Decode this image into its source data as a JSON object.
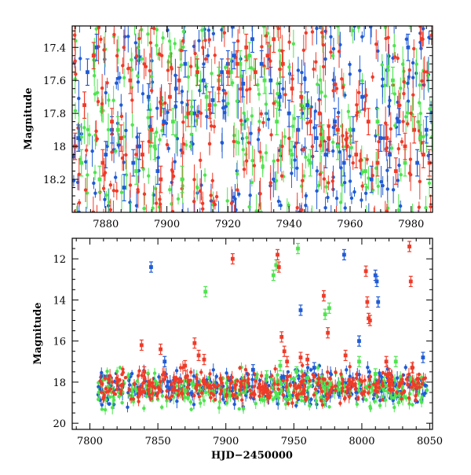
{
  "colors": {
    "blue": "#1f5bd6",
    "green": "#4ee44e",
    "red": "#f03a28",
    "black": "#000000"
  },
  "chart_data": [
    {
      "type": "scatter",
      "panel": "top",
      "title": "",
      "xlabel": "",
      "ylabel": "Magnitude",
      "xlim": [
        7869,
        7987
      ],
      "ylim": [
        18.4,
        17.27
      ],
      "y_inverted": true,
      "xticks": [
        7880,
        7900,
        7920,
        7940,
        7960,
        7980
      ],
      "yticks": [
        17.4,
        17.6,
        17.8,
        18,
        18.2
      ],
      "ytick_labels": [
        "17.4",
        "17.6",
        "17.8",
        "18",
        "18.2"
      ],
      "grid": false,
      "legend": "none",
      "error_bars": true,
      "series_colors": [
        "blue",
        "green",
        "red"
      ],
      "series": [
        {
          "color": "blue",
          "x": [
            7871,
            7874,
            7877,
            7880,
            7882,
            7886,
            7889,
            7891,
            7894,
            7897,
            7899,
            7903,
            7906,
            7909,
            7912,
            7915,
            7918,
            7920,
            7922,
            7925,
            7928,
            7931,
            7934,
            7937,
            7940,
            7943,
            7946,
            7949,
            7952,
            7955,
            7958,
            7961,
            7964,
            7967,
            7970,
            7973,
            7976,
            7979,
            7982,
            7985
          ],
          "y": [
            17.95,
            17.55,
            17.4,
            18.05,
            17.9,
            18.25,
            18.1,
            18.0,
            17.7,
            18.15,
            17.85,
            17.65,
            17.5,
            17.8,
            17.6,
            17.72,
            17.55,
            17.5,
            17.45,
            17.62,
            17.35,
            17.5,
            17.6,
            17.7,
            17.8,
            17.9,
            17.75,
            17.95,
            18.05,
            17.85,
            18.1,
            17.9,
            17.7,
            18.2,
            17.95,
            18.05,
            17.85,
            17.4,
            18.1,
            17.9
          ]
        },
        {
          "color": "green",
          "x": [
            7872,
            7878,
            7884,
            7890,
            7896,
            7902,
            7905,
            7908,
            7913,
            7917,
            7921,
            7924,
            7927,
            7932,
            7936,
            7941,
            7944,
            7947,
            7951,
            7956,
            7960,
            7965,
            7969,
            7974,
            7978,
            7983
          ],
          "y": [
            18.1,
            18.2,
            17.9,
            18.15,
            18.0,
            17.85,
            18.2,
            17.8,
            17.7,
            17.6,
            17.55,
            17.5,
            17.45,
            17.6,
            17.85,
            18.05,
            17.75,
            18.1,
            17.95,
            18.0,
            17.9,
            18.15,
            17.85,
            17.6,
            18.1,
            17.95
          ]
        },
        {
          "color": "red",
          "x": [
            7870,
            7873,
            7876,
            7879,
            7882,
            7885,
            7888,
            7892,
            7895,
            7898,
            7901,
            7904,
            7907,
            7910,
            7914,
            7917,
            7920,
            7923,
            7926,
            7929,
            7933,
            7935,
            7938,
            7941,
            7944,
            7947,
            7950,
            7953,
            7956,
            7959,
            7962,
            7966,
            7969,
            7972,
            7975,
            7978,
            7981,
            7984,
            7986
          ],
          "y": [
            18.0,
            17.75,
            17.45,
            18.1,
            17.85,
            17.95,
            17.6,
            18.05,
            17.9,
            18.2,
            17.7,
            17.6,
            17.8,
            17.55,
            17.75,
            17.65,
            17.55,
            17.5,
            17.4,
            17.55,
            17.45,
            17.35,
            17.5,
            17.65,
            17.7,
            17.85,
            17.8,
            17.95,
            17.9,
            18.0,
            18.05,
            17.85,
            18.1,
            17.95,
            18.15,
            18.0,
            17.9,
            18.05,
            18.1
          ]
        }
      ]
    },
    {
      "type": "scatter",
      "panel": "bottom",
      "title": "",
      "xlabel": "HJD−2450000",
      "ylabel": "Magnitude",
      "xlim": [
        7787,
        8052
      ],
      "ylim": [
        20.3,
        11.0
      ],
      "y_inverted": true,
      "xticks": [
        7800,
        7850,
        7900,
        7950,
        8000,
        8050
      ],
      "yticks": [
        12,
        14,
        16,
        18,
        20
      ],
      "ytick_labels": [
        "12",
        "14",
        "16",
        "18",
        "20"
      ],
      "grid": false,
      "legend": "none",
      "error_bars": true,
      "series_colors": [
        "blue",
        "green",
        "red"
      ],
      "series": [
        {
          "color": "blue",
          "x": [
            7845,
            7955,
            7987,
            8010,
            8011,
            8012,
            7965,
            7998,
            8045,
            7855,
            7920
          ],
          "y": [
            12.4,
            14.5,
            11.8,
            12.8,
            13.1,
            14.1,
            17.3,
            16.0,
            16.8,
            17.0,
            17.4
          ]
        },
        {
          "color": "green",
          "x": [
            7885,
            7935,
            7937,
            7953,
            7973,
            7976,
            7998,
            7940,
            7952,
            8010,
            7960,
            7930,
            8025
          ],
          "y": [
            13.6,
            12.8,
            12.3,
            11.5,
            14.7,
            14.4,
            17.0,
            17.2,
            17.5,
            17.6,
            17.8,
            17.7,
            17.0
          ]
        },
        {
          "color": "red",
          "x": [
            7838,
            7840,
            7852,
            7870,
            7877,
            7880,
            7884,
            7905,
            7938,
            7939,
            7941,
            7943,
            7945,
            7960,
            7972,
            7975,
            7988,
            8003,
            8004,
            8005,
            8006,
            8035,
            8036,
            8037,
            8018,
            8020,
            7955
          ],
          "y": [
            16.2,
            17.5,
            16.4,
            17.2,
            16.1,
            16.7,
            16.9,
            12.0,
            11.8,
            12.4,
            15.8,
            16.5,
            17.0,
            16.9,
            13.8,
            15.6,
            16.7,
            12.6,
            14.1,
            14.9,
            15.0,
            11.4,
            13.1,
            17.3,
            17.0,
            17.6,
            16.8
          ]
        }
      ],
      "dense_band": {
        "x_start": 7806,
        "x_end": 8048,
        "y_center": 18.2,
        "spread": 1.5
      }
    }
  ]
}
